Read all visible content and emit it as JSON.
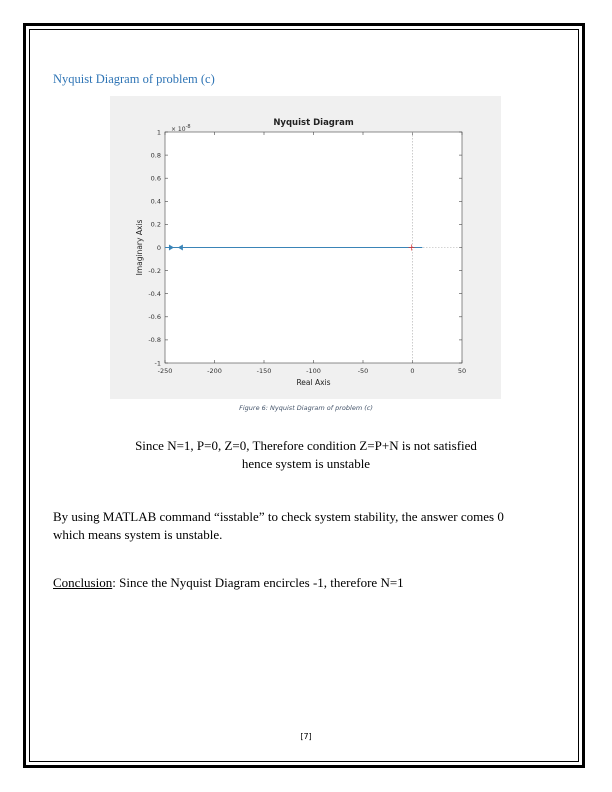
{
  "heading": "Nyquist Diagram of problem (c)",
  "figure": {
    "caption": "Figure 6: Nyquist Diagram of problem (c)"
  },
  "chart_data": {
    "type": "line",
    "title": "Nyquist Diagram",
    "xlabel": "Real Axis",
    "ylabel": "Imaginary Axis",
    "y_exponent_label": "10",
    "y_exponent_power": "-8",
    "xlim": [
      -250,
      50
    ],
    "ylim": [
      -1,
      1
    ],
    "xticks": [
      -250,
      -200,
      -150,
      -100,
      -50,
      0,
      50
    ],
    "yticks": [
      1,
      0.8,
      0.6,
      0.4,
      0.2,
      0,
      -0.2,
      -0.4,
      -0.6,
      -0.8,
      -1
    ],
    "ytick_labels": [
      "1",
      "0.8",
      "0.6",
      "0.4",
      "0.2",
      "0",
      "-0.2",
      "-0.4",
      "-0.6",
      "-0.8",
      "-1"
    ],
    "grid": false,
    "series": [
      {
        "x": [
          10,
          -250
        ],
        "y": [
          0,
          0
        ],
        "color": "#3a84b7"
      }
    ],
    "critical_point": {
      "x": -1,
      "y": 0
    }
  },
  "statement_line1": "Since N=1, P=0, Z=0, Therefore condition Z=P+N is not satisfied",
  "statement_line2": "hence system is unstable",
  "matlab_line1": "By using MATLAB command “isstable” to check system stability, the answer comes 0",
  "matlab_line2": "which means system is unstable.",
  "conclusion_label": "Conclusion",
  "conclusion_text": ": Since the Nyquist Diagram encircles -1, therefore N=1",
  "page_number": "[7]"
}
